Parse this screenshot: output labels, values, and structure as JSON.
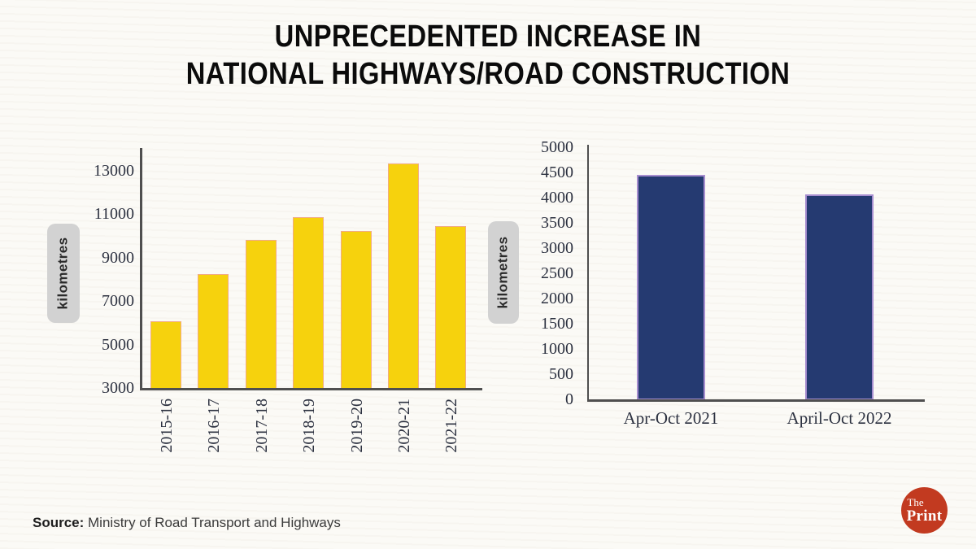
{
  "page": {
    "background_color": "#fbfaf6"
  },
  "title": {
    "line1": "UNPRECEDENTED INCREASE IN",
    "line2": "NATIONAL HIGHWAYS/ROAD CONSTRUCTION"
  },
  "source": {
    "label": "Source:",
    "text": " Ministry of Road Transport and Highways"
  },
  "logo": {
    "top_word": "The",
    "bottom_word": "Print",
    "background_color": "#c23a20",
    "text_color": "#ffffff"
  },
  "chart_data": [
    {
      "type": "bar",
      "name": "national-highways-construction-by-year",
      "title": "",
      "xlabel": "",
      "ylabel": "kilometres",
      "categories": [
        "2015-16",
        "2016-17",
        "2017-18",
        "2018-19",
        "2019-20",
        "2020-21",
        "2021-22"
      ],
      "values": [
        6061,
        8231,
        9829,
        10855,
        10237,
        13327,
        10457
      ],
      "yticks": [
        3000,
        5000,
        7000,
        9000,
        11000,
        13000
      ],
      "ylim": [
        3000,
        14050
      ],
      "bar_color": "#f6d20d",
      "bar_border_color": "#f1ac85",
      "axis_color": "#4f4f4f",
      "tick_color": "#2c3140",
      "grid": false,
      "legend": "none"
    },
    {
      "type": "bar",
      "name": "national-highways-construction-apr-oct-comparison",
      "title": "",
      "xlabel": "",
      "ylabel": "kilometres",
      "categories": [
        "Apr-Oct 2021",
        "April-Oct 2022"
      ],
      "values": [
        4450,
        4060
      ],
      "yticks": [
        0,
        500,
        1000,
        1500,
        2000,
        2500,
        3000,
        3500,
        4000,
        4500,
        5000
      ],
      "ylim": [
        0,
        5050
      ],
      "bar_color": "#253a71",
      "bar_border_color": "#a78ecf",
      "axis_color": "#4f4f4f",
      "tick_color": "#2c3140",
      "grid": false,
      "legend": "none"
    }
  ]
}
